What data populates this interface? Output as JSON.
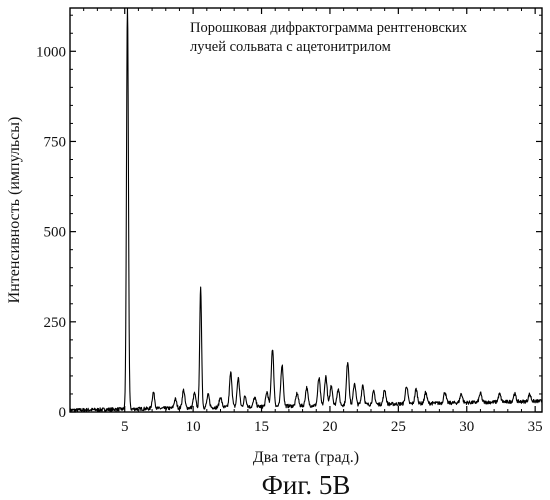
{
  "chart_data": {
    "type": "line",
    "annotation": [
      "Порошковая дифрактограмма рентгеновских",
      "лучей сольвата с ацетонитрилом"
    ],
    "xlabel": "Два тета (град.)",
    "ylabel": "Интенсивность (импульсы)",
    "caption": "Фиг. 5В",
    "xlim": [
      1,
      35.5
    ],
    "ylim": [
      0,
      1120
    ],
    "xticks": [
      5,
      10,
      15,
      20,
      25,
      30,
      35
    ],
    "yticks": [
      0,
      250,
      500,
      750,
      1000
    ],
    "xtick_labels": [
      "5",
      "10",
      "15",
      "20",
      "25",
      "30",
      "35"
    ],
    "ytick_labels": [
      "0",
      "250",
      "500",
      "750",
      "1000"
    ],
    "grid": false,
    "baseline_range": [
      5,
      30
    ],
    "series": [
      {
        "color": "#000000",
        "peaks": [
          {
            "x": 5.2,
            "y": 1120
          },
          {
            "x": 7.1,
            "y": 45
          },
          {
            "x": 8.7,
            "y": 25
          },
          {
            "x": 9.3,
            "y": 50
          },
          {
            "x": 10.1,
            "y": 40
          },
          {
            "x": 10.55,
            "y": 330
          },
          {
            "x": 11.1,
            "y": 35
          },
          {
            "x": 12.0,
            "y": 28
          },
          {
            "x": 12.75,
            "y": 95
          },
          {
            "x": 13.3,
            "y": 80
          },
          {
            "x": 13.8,
            "y": 30
          },
          {
            "x": 14.5,
            "y": 25
          },
          {
            "x": 15.4,
            "y": 40
          },
          {
            "x": 15.8,
            "y": 160
          },
          {
            "x": 16.5,
            "y": 115
          },
          {
            "x": 17.6,
            "y": 35
          },
          {
            "x": 18.3,
            "y": 50
          },
          {
            "x": 19.2,
            "y": 75
          },
          {
            "x": 19.7,
            "y": 80
          },
          {
            "x": 20.1,
            "y": 55
          },
          {
            "x": 20.6,
            "y": 45
          },
          {
            "x": 21.3,
            "y": 120
          },
          {
            "x": 21.8,
            "y": 60
          },
          {
            "x": 22.4,
            "y": 55
          },
          {
            "x": 23.2,
            "y": 35
          },
          {
            "x": 24.0,
            "y": 40
          },
          {
            "x": 25.6,
            "y": 50
          },
          {
            "x": 26.3,
            "y": 40
          },
          {
            "x": 27.0,
            "y": 30
          },
          {
            "x": 28.4,
            "y": 30
          },
          {
            "x": 29.6,
            "y": 25
          },
          {
            "x": 31.0,
            "y": 25
          },
          {
            "x": 32.4,
            "y": 22
          },
          {
            "x": 33.5,
            "y": 22
          },
          {
            "x": 34.6,
            "y": 20
          }
        ]
      }
    ]
  }
}
